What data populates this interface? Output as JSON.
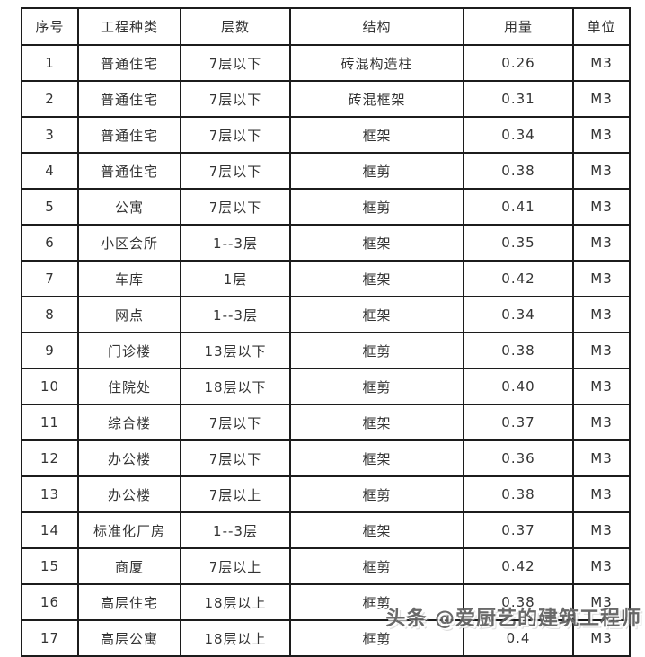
{
  "table": {
    "headers": [
      "序号",
      "工程种类",
      "层数",
      "结构",
      "用量",
      "单位"
    ],
    "rows": [
      [
        "1",
        "普通住宅",
        "7层以下",
        "砖混构造柱",
        "0.26",
        "M3"
      ],
      [
        "2",
        "普通住宅",
        "7层以下",
        "砖混框架",
        "0.31",
        "M3"
      ],
      [
        "3",
        "普通住宅",
        "7层以下",
        "框架",
        "0.34",
        "M3"
      ],
      [
        "4",
        "普通住宅",
        "7层以下",
        "框剪",
        "0.38",
        "M3"
      ],
      [
        "5",
        "公寓",
        "7层以下",
        "框剪",
        "0.41",
        "M3"
      ],
      [
        "6",
        "小区会所",
        "1--3层",
        "框架",
        "0.35",
        "M3"
      ],
      [
        "7",
        "车库",
        "1层",
        "框架",
        "0.42",
        "M3"
      ],
      [
        "8",
        "网点",
        "1--3层",
        "框架",
        "0.34",
        "M3"
      ],
      [
        "9",
        "门诊楼",
        "13层以下",
        "框剪",
        "0.38",
        "M3"
      ],
      [
        "10",
        "住院处",
        "18层以下",
        "框剪",
        "0.40",
        "M3"
      ],
      [
        "11",
        "综合楼",
        "7层以下",
        "框架",
        "0.37",
        "M3"
      ],
      [
        "12",
        "办公楼",
        "7层以下",
        "框架",
        "0.36",
        "M3"
      ],
      [
        "13",
        "办公楼",
        "7层以上",
        "框剪",
        "0.38",
        "M3"
      ],
      [
        "14",
        "标准化厂房",
        "1--3层",
        "框架",
        "0.37",
        "M3"
      ],
      [
        "15",
        "商厦",
        "7层以上",
        "框剪",
        "0.42",
        "M3"
      ],
      [
        "16",
        "高层住宅",
        "18层以上",
        "框剪",
        "0.38",
        "M3"
      ],
      [
        "17",
        "高层公寓",
        "18层以上",
        "框剪",
        "0.4",
        "M3"
      ]
    ]
  },
  "chart_data": {
    "type": "table",
    "title": "",
    "columns": [
      "序号",
      "工程种类",
      "层数",
      "结构",
      "用量",
      "单位"
    ],
    "rows": [
      [
        "1",
        "普通住宅",
        "7层以下",
        "砖混构造柱",
        "0.26",
        "M3"
      ],
      [
        "2",
        "普通住宅",
        "7层以下",
        "砖混框架",
        "0.31",
        "M3"
      ],
      [
        "3",
        "普通住宅",
        "7层以下",
        "框架",
        "0.34",
        "M3"
      ],
      [
        "4",
        "普通住宅",
        "7层以下",
        "框剪",
        "0.38",
        "M3"
      ],
      [
        "5",
        "公寓",
        "7层以下",
        "框剪",
        "0.41",
        "M3"
      ],
      [
        "6",
        "小区会所",
        "1--3层",
        "框架",
        "0.35",
        "M3"
      ],
      [
        "7",
        "车库",
        "1层",
        "框架",
        "0.42",
        "M3"
      ],
      [
        "8",
        "网点",
        "1--3层",
        "框架",
        "0.34",
        "M3"
      ],
      [
        "9",
        "门诊楼",
        "13层以下",
        "框剪",
        "0.38",
        "M3"
      ],
      [
        "10",
        "住院处",
        "18层以下",
        "框剪",
        "0.40",
        "M3"
      ],
      [
        "11",
        "综合楼",
        "7层以下",
        "框架",
        "0.37",
        "M3"
      ],
      [
        "12",
        "办公楼",
        "7层以下",
        "框架",
        "0.36",
        "M3"
      ],
      [
        "13",
        "办公楼",
        "7层以上",
        "框剪",
        "0.38",
        "M3"
      ],
      [
        "14",
        "标准化厂房",
        "1--3层",
        "框架",
        "0.37",
        "M3"
      ],
      [
        "15",
        "商厦",
        "7层以上",
        "框剪",
        "0.42",
        "M3"
      ],
      [
        "16",
        "高层住宅",
        "18层以上",
        "框剪",
        "0.38",
        "M3"
      ],
      [
        "17",
        "高层公寓",
        "18层以上",
        "框剪",
        "0.4",
        "M3"
      ]
    ]
  },
  "watermark": {
    "text": "头条 @爱厨艺的建筑工程师"
  },
  "colors": {
    "border": "#1c1c1c",
    "text": "#333333",
    "background": "#ffffff",
    "watermark": "#5c5c5c"
  }
}
